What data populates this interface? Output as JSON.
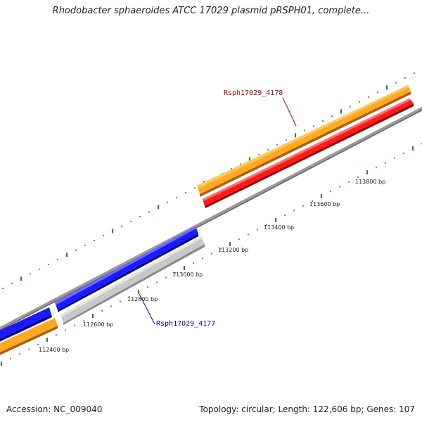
{
  "title": "Rhodobacter sphaeroides ATCC 17029 plasmid pRSPH01, complete...",
  "footer": {
    "accession": "Accession: NC_009040",
    "summary": "Topology: circular; Length: 122,606 bp; Genes: 107"
  },
  "scale": {
    "labels": [
      "112400 bp",
      "112600 bp",
      "112800 bp",
      "113000 bp",
      "113200 bp",
      "113400 bp",
      "113600 bp",
      "113800 bp"
    ]
  },
  "genes": [
    {
      "id": "Rsph17029_4178",
      "label": "Rsph17029_4178",
      "strand": "forward",
      "color": "#ff0000",
      "label_color": "#cc0000"
    },
    {
      "id": "Rsph17029_4177",
      "label": "Rsph17029_4177",
      "strand": "reverse",
      "color": "#0000ee",
      "label_color": "#0000cc"
    }
  ],
  "colors": {
    "cds_forward": "#ff9900",
    "cds_reverse": "#bbbbbb",
    "tick": "#228b22",
    "backbone": "#777777"
  }
}
